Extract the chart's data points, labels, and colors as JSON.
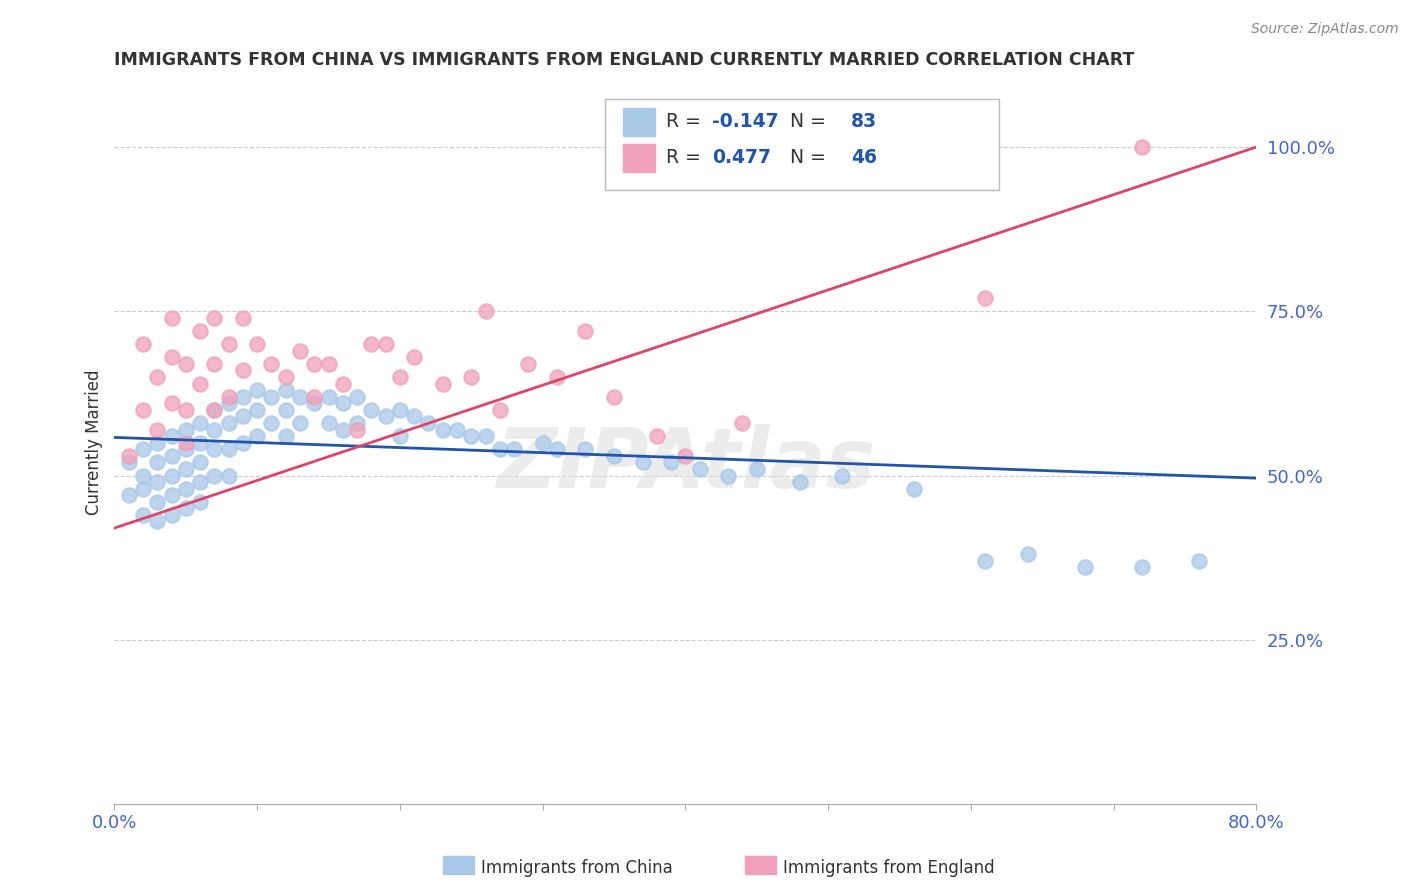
{
  "title": "IMMIGRANTS FROM CHINA VS IMMIGRANTS FROM ENGLAND CURRENTLY MARRIED CORRELATION CHART",
  "source": "Source: ZipAtlas.com",
  "ylabel": "Currently Married",
  "xlim": [
    0.0,
    0.8
  ],
  "ylim": [
    0.0,
    1.1
  ],
  "yticks": [
    0.25,
    0.5,
    0.75,
    1.0
  ],
  "ytick_labels": [
    "25.0%",
    "50.0%",
    "75.0%",
    "100.0%"
  ],
  "xticks": [
    0.0,
    0.1,
    0.2,
    0.3,
    0.4,
    0.5,
    0.6,
    0.7,
    0.8
  ],
  "xtick_labels": [
    "0.0%",
    "",
    "",
    "",
    "",
    "",
    "",
    "",
    "80.0%"
  ],
  "china_color": "#a8c8e8",
  "england_color": "#f0a0b8",
  "china_line_color": "#2255aa",
  "england_line_color": "#dd4466",
  "china_R": -0.147,
  "china_N": 83,
  "england_R": 0.477,
  "england_N": 46,
  "legend_china_label": "Immigrants from China",
  "legend_england_label": "Immigrants from England",
  "watermark": "ZIPAtlas",
  "background_color": "#ffffff",
  "grid_color": "#cccccc",
  "title_color": "#333333",
  "axis_label_color": "#4466cc",
  "china_scatter_x": [
    0.01,
    0.01,
    0.02,
    0.02,
    0.02,
    0.02,
    0.03,
    0.03,
    0.03,
    0.03,
    0.03,
    0.04,
    0.04,
    0.04,
    0.04,
    0.04,
    0.05,
    0.05,
    0.05,
    0.05,
    0.05,
    0.06,
    0.06,
    0.06,
    0.06,
    0.06,
    0.07,
    0.07,
    0.07,
    0.07,
    0.08,
    0.08,
    0.08,
    0.08,
    0.09,
    0.09,
    0.09,
    0.1,
    0.1,
    0.1,
    0.11,
    0.11,
    0.12,
    0.12,
    0.12,
    0.13,
    0.13,
    0.14,
    0.15,
    0.15,
    0.16,
    0.16,
    0.17,
    0.17,
    0.18,
    0.19,
    0.2,
    0.2,
    0.21,
    0.22,
    0.23,
    0.24,
    0.25,
    0.26,
    0.27,
    0.28,
    0.3,
    0.31,
    0.33,
    0.35,
    0.37,
    0.39,
    0.41,
    0.43,
    0.45,
    0.48,
    0.51,
    0.56,
    0.61,
    0.64,
    0.68,
    0.72,
    0.76
  ],
  "china_scatter_y": [
    0.52,
    0.47,
    0.54,
    0.5,
    0.48,
    0.44,
    0.55,
    0.52,
    0.49,
    0.46,
    0.43,
    0.56,
    0.53,
    0.5,
    0.47,
    0.44,
    0.57,
    0.54,
    0.51,
    0.48,
    0.45,
    0.58,
    0.55,
    0.52,
    0.49,
    0.46,
    0.6,
    0.57,
    0.54,
    0.5,
    0.61,
    0.58,
    0.54,
    0.5,
    0.62,
    0.59,
    0.55,
    0.63,
    0.6,
    0.56,
    0.62,
    0.58,
    0.63,
    0.6,
    0.56,
    0.62,
    0.58,
    0.61,
    0.62,
    0.58,
    0.61,
    0.57,
    0.62,
    0.58,
    0.6,
    0.59,
    0.6,
    0.56,
    0.59,
    0.58,
    0.57,
    0.57,
    0.56,
    0.56,
    0.54,
    0.54,
    0.55,
    0.54,
    0.54,
    0.53,
    0.52,
    0.52,
    0.51,
    0.5,
    0.51,
    0.49,
    0.5,
    0.48,
    0.37,
    0.38,
    0.36,
    0.36,
    0.37
  ],
  "england_scatter_x": [
    0.01,
    0.02,
    0.02,
    0.03,
    0.03,
    0.04,
    0.04,
    0.04,
    0.05,
    0.05,
    0.05,
    0.06,
    0.06,
    0.07,
    0.07,
    0.07,
    0.08,
    0.08,
    0.09,
    0.09,
    0.1,
    0.11,
    0.12,
    0.13,
    0.14,
    0.14,
    0.15,
    0.16,
    0.17,
    0.18,
    0.19,
    0.2,
    0.21,
    0.23,
    0.25,
    0.26,
    0.27,
    0.29,
    0.31,
    0.33,
    0.35,
    0.38,
    0.4,
    0.44,
    0.61,
    0.72
  ],
  "england_scatter_y": [
    0.53,
    0.6,
    0.7,
    0.65,
    0.57,
    0.68,
    0.74,
    0.61,
    0.67,
    0.6,
    0.55,
    0.72,
    0.64,
    0.74,
    0.67,
    0.6,
    0.7,
    0.62,
    0.74,
    0.66,
    0.7,
    0.67,
    0.65,
    0.69,
    0.67,
    0.62,
    0.67,
    0.64,
    0.57,
    0.7,
    0.7,
    0.65,
    0.68,
    0.64,
    0.65,
    0.75,
    0.6,
    0.67,
    0.65,
    0.72,
    0.62,
    0.56,
    0.53,
    0.58,
    0.77,
    1.0
  ],
  "china_trend_x": [
    0.0,
    0.8
  ],
  "china_trend_y": [
    0.558,
    0.496
  ],
  "england_trend_x": [
    0.0,
    0.8
  ],
  "england_trend_y": [
    0.42,
    1.0
  ]
}
